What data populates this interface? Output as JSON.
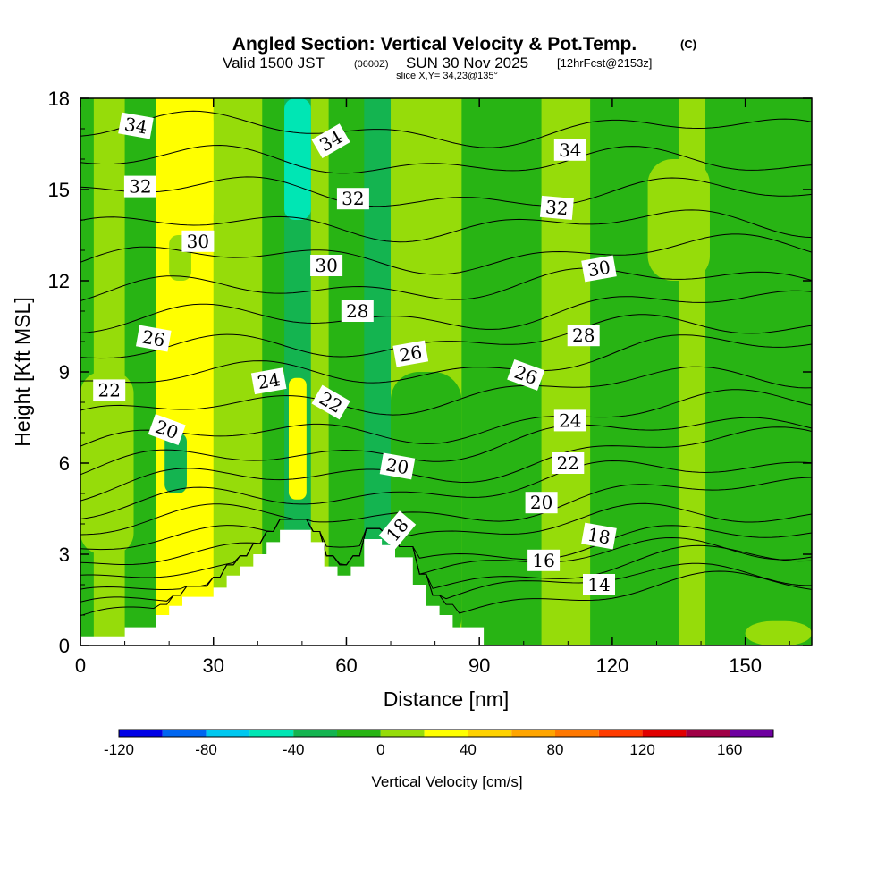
{
  "chart_data": {
    "type": "heatmap",
    "title": "Angled Section: Vertical Velocity & Pot.Temp.",
    "title_mark": "(C)",
    "subtitle_prefix": "Valid 1500 JST",
    "subtitle_utc": "(0600Z)",
    "subtitle_date": "SUN 30 Nov 2025",
    "subtitle_fcst": "[12hrFcst@2153z]",
    "slice_info": "slice X,Y= 34,23@135°",
    "xlabel": "Distance [nm]",
    "ylabel": "Height [Kft MSL]",
    "xlim": [
      0,
      165
    ],
    "ylim": [
      0,
      18
    ],
    "x_ticks": [
      "0",
      "30",
      "60",
      "90",
      "120",
      "150"
    ],
    "x_tick_values": [
      0,
      30,
      60,
      90,
      120,
      150
    ],
    "y_ticks": [
      "0",
      "3",
      "6",
      "9",
      "12",
      "15",
      "18"
    ],
    "y_tick_values": [
      0,
      3,
      6,
      9,
      12,
      15,
      18
    ],
    "colorbar": {
      "label": "Vertical Velocity [cm/s]",
      "range": [
        -120,
        180
      ],
      "step": 20,
      "tick_labels": [
        "-120",
        "-80",
        "-40",
        "0",
        "40",
        "80",
        "120",
        "160"
      ],
      "tick_values": [
        -120,
        -80,
        -40,
        0,
        40,
        80,
        120,
        160
      ],
      "colors": [
        "#0000e6",
        "#0066f0",
        "#00c8f0",
        "#00e6b4",
        "#14b450",
        "#28b414",
        "#96dc0a",
        "#ffff00",
        "#ffd200",
        "#ffa500",
        "#ff7800",
        "#ff3c00",
        "#e10000",
        "#a00046",
        "#6e00a0"
      ]
    },
    "velocity_columns": [
      {
        "x": [
          0,
          3
        ],
        "value": -10
      },
      {
        "x": [
          3,
          10
        ],
        "value": 10
      },
      {
        "x": [
          10,
          17
        ],
        "value": -10
      },
      {
        "x": [
          17,
          30
        ],
        "value": 30
      },
      {
        "x": [
          30,
          41
        ],
        "value": 10
      },
      {
        "x": [
          41,
          46
        ],
        "value": -10
      },
      {
        "x": [
          46,
          52
        ],
        "value": -40
      },
      {
        "x": [
          52,
          56
        ],
        "value": 10
      },
      {
        "x": [
          56,
          64
        ],
        "value": -10
      },
      {
        "x": [
          64,
          70
        ],
        "value": -30
      },
      {
        "x": [
          70,
          86
        ],
        "value": 10
      },
      {
        "x": [
          86,
          104
        ],
        "value": -10
      },
      {
        "x": [
          104,
          115
        ],
        "value": 10
      },
      {
        "x": [
          115,
          135
        ],
        "value": -10
      },
      {
        "x": [
          135,
          141
        ],
        "value": 10
      },
      {
        "x": [
          141,
          165
        ],
        "value": -10
      }
    ],
    "velocity_patches": [
      {
        "x": [
          17,
          30
        ],
        "y": [
          13.5,
          18
        ],
        "value": 30
      },
      {
        "x": [
          47,
          51
        ],
        "y": [
          4.8,
          8.8
        ],
        "value": 30
      },
      {
        "x": [
          46,
          52
        ],
        "y": [
          14,
          18
        ],
        "value": -50
      },
      {
        "x": [
          19,
          24
        ],
        "y": [
          5,
          7
        ],
        "value": -30
      },
      {
        "x": [
          20,
          25
        ],
        "y": [
          12,
          13.5
        ],
        "value": 10
      },
      {
        "x": [
          0,
          12
        ],
        "y": [
          3,
          9
        ],
        "value": 10
      },
      {
        "x": [
          70,
          86
        ],
        "y": [
          0,
          9
        ],
        "value": -10
      },
      {
        "x": [
          93,
          103
        ],
        "y": [
          0,
          2.5
        ],
        "value": -10
      },
      {
        "x": [
          128,
          142
        ],
        "y": [
          12,
          16
        ],
        "value": 10
      },
      {
        "x": [
          150,
          165
        ],
        "y": [
          0,
          0.8
        ],
        "value": 10
      }
    ],
    "terrain": [
      [
        0,
        0.3
      ],
      [
        10,
        0.3
      ],
      [
        10,
        0.6
      ],
      [
        17,
        0.6
      ],
      [
        17,
        1.0
      ],
      [
        20,
        1.0
      ],
      [
        20,
        1.3
      ],
      [
        23,
        1.3
      ],
      [
        23,
        1.6
      ],
      [
        30,
        1.6
      ],
      [
        30,
        1.9
      ],
      [
        33,
        1.9
      ],
      [
        33,
        2.3
      ],
      [
        36,
        2.3
      ],
      [
        36,
        2.6
      ],
      [
        39,
        2.6
      ],
      [
        39,
        3.0
      ],
      [
        42,
        3.0
      ],
      [
        42,
        3.4
      ],
      [
        45,
        3.4
      ],
      [
        45,
        3.8
      ],
      [
        52,
        3.8
      ],
      [
        52,
        3.4
      ],
      [
        55,
        3.4
      ],
      [
        55,
        2.6
      ],
      [
        58,
        2.6
      ],
      [
        58,
        2.3
      ],
      [
        61,
        2.3
      ],
      [
        61,
        2.6
      ],
      [
        64,
        2.6
      ],
      [
        64,
        3.5
      ],
      [
        68,
        3.5
      ],
      [
        68,
        3.3
      ],
      [
        71,
        3.3
      ],
      [
        71,
        2.9
      ],
      [
        75,
        2.9
      ],
      [
        75,
        2.0
      ],
      [
        78,
        2.0
      ],
      [
        78,
        1.3
      ],
      [
        81,
        1.3
      ],
      [
        81,
        1.0
      ],
      [
        84,
        1.0
      ],
      [
        84,
        0.6
      ],
      [
        91,
        0.6
      ],
      [
        91,
        0
      ]
    ],
    "theta_contours": [
      {
        "label": "14",
        "h0": 0.8,
        "h1": 2.0
      },
      {
        "label": "16",
        "h0": 1.6,
        "h1": 2.9
      },
      {
        "label": "18",
        "h0": 2.6,
        "h1": 3.6
      },
      {
        "label": "20",
        "h0": 3.8,
        "h1": 5.2
      },
      {
        "label": "22",
        "h0": 5.0,
        "h1": 6.8
      },
      {
        "label": "24",
        "h0": 6.5,
        "h1": 8.0
      },
      {
        "label": "26",
        "h0": 8.5,
        "h1": 9.9
      },
      {
        "label": "28",
        "h0": 10.5,
        "h1": 11.3
      },
      {
        "label": "30",
        "h0": 12.6,
        "h1": 13.0
      },
      {
        "label": "32",
        "h0": 14.9,
        "h1": 14.8
      },
      {
        "label": "34",
        "h0": 17.0,
        "h1": 16.9
      }
    ],
    "contour_labels": [
      {
        "text": "34",
        "x": 12.5,
        "y": 17.1,
        "angle": 10
      },
      {
        "text": "32",
        "x": 13.5,
        "y": 15.1,
        "angle": 0
      },
      {
        "text": "30",
        "x": 26.5,
        "y": 13.3,
        "angle": 0
      },
      {
        "text": "26",
        "x": 16.5,
        "y": 10.1,
        "angle": 10
      },
      {
        "text": "22",
        "x": 6.5,
        "y": 8.4,
        "angle": 0
      },
      {
        "text": "20",
        "x": 19.5,
        "y": 7.1,
        "angle": 20
      },
      {
        "text": "24",
        "x": 42.5,
        "y": 8.7,
        "angle": -10
      },
      {
        "text": "34",
        "x": 56.5,
        "y": 16.6,
        "angle": -30
      },
      {
        "text": "32",
        "x": 61.5,
        "y": 14.7,
        "angle": 0
      },
      {
        "text": "30",
        "x": 55.5,
        "y": 12.5,
        "angle": 0
      },
      {
        "text": "28",
        "x": 62.5,
        "y": 11.0,
        "angle": 0
      },
      {
        "text": "22",
        "x": 56.5,
        "y": 8.0,
        "angle": 30
      },
      {
        "text": "26",
        "x": 74.5,
        "y": 9.6,
        "angle": -10
      },
      {
        "text": "20",
        "x": 71.5,
        "y": 5.9,
        "angle": 10
      },
      {
        "text": "18",
        "x": 71.5,
        "y": 3.8,
        "angle": -50
      },
      {
        "text": "34",
        "x": 110.5,
        "y": 16.3,
        "angle": 0
      },
      {
        "text": "32",
        "x": 107.5,
        "y": 14.4,
        "angle": 5
      },
      {
        "text": "30",
        "x": 117.0,
        "y": 12.4,
        "angle": -10
      },
      {
        "text": "28",
        "x": 113.5,
        "y": 10.2,
        "angle": 0
      },
      {
        "text": "26",
        "x": 100.5,
        "y": 8.9,
        "angle": 20
      },
      {
        "text": "24",
        "x": 110.5,
        "y": 7.4,
        "angle": 0
      },
      {
        "text": "22",
        "x": 110.0,
        "y": 6.0,
        "angle": 0
      },
      {
        "text": "20",
        "x": 104.0,
        "y": 4.7,
        "angle": 0
      },
      {
        "text": "18",
        "x": 117.0,
        "y": 3.6,
        "angle": 10
      },
      {
        "text": "16",
        "x": 104.5,
        "y": 2.8,
        "angle": 0
      },
      {
        "text": "14",
        "x": 117.0,
        "y": 2.0,
        "angle": 0
      }
    ]
  }
}
